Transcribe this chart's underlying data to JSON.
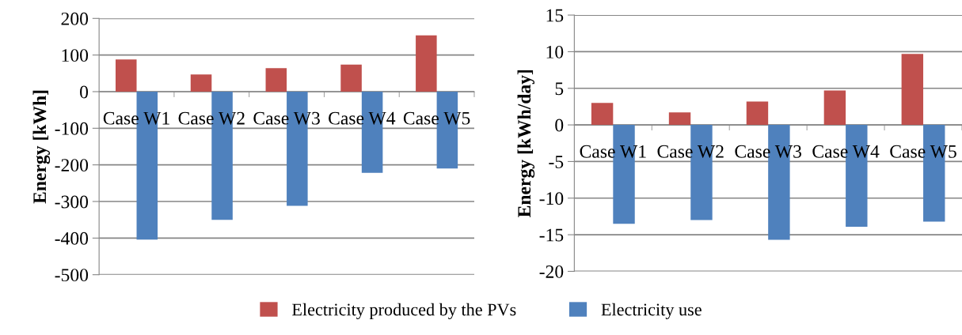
{
  "chart_data": [
    {
      "type": "bar",
      "ylabel": "Energy [kWh]",
      "categories": [
        "Case W1",
        "Case W2",
        "Case W3",
        "Case W4",
        "Case W5"
      ],
      "series": [
        {
          "name": "Electricity produced by the PVs",
          "color": "#c0504d",
          "values": [
            88,
            47,
            64,
            74,
            154
          ]
        },
        {
          "name": "Electricity use",
          "color": "#4f81bd",
          "values": [
            -404,
            -350,
            -312,
            -222,
            -210
          ]
        }
      ],
      "ylim": [
        -500,
        200
      ],
      "yticks": [
        {
          "value": -500,
          "label": "-500"
        },
        {
          "value": -400,
          "label": "-400"
        },
        {
          "value": -300,
          "label": "-300"
        },
        {
          "value": -200,
          "label": "-200"
        },
        {
          "value": -100,
          "label": "-100"
        },
        0,
        100,
        200
      ],
      "grid": "y",
      "legend": "bottom"
    },
    {
      "type": "bar",
      "ylabel": "Energy [kWh/day]",
      "categories": [
        "Case W1",
        "Case W2",
        "Case W3",
        "Case W4",
        "Case W5"
      ],
      "series": [
        {
          "color": "#c0504d",
          "values": [
            3.0,
            1.7,
            3.2,
            4.7,
            9.7
          ]
        },
        {
          "color": "#4f81bd",
          "values": [
            -13.5,
            -13.0,
            -15.7,
            -13.9,
            -13.2
          ]
        }
      ],
      "ylim": [
        -20,
        15
      ],
      "yticks": [
        {
          "value": -20,
          "label": "-20"
        },
        {
          "value": -15,
          "label": "-15"
        },
        {
          "value": -10,
          "label": "-10"
        },
        {
          "value": -5,
          "label": "-5"
        },
        0,
        5,
        10,
        15
      ],
      "grid": "y"
    }
  ]
}
